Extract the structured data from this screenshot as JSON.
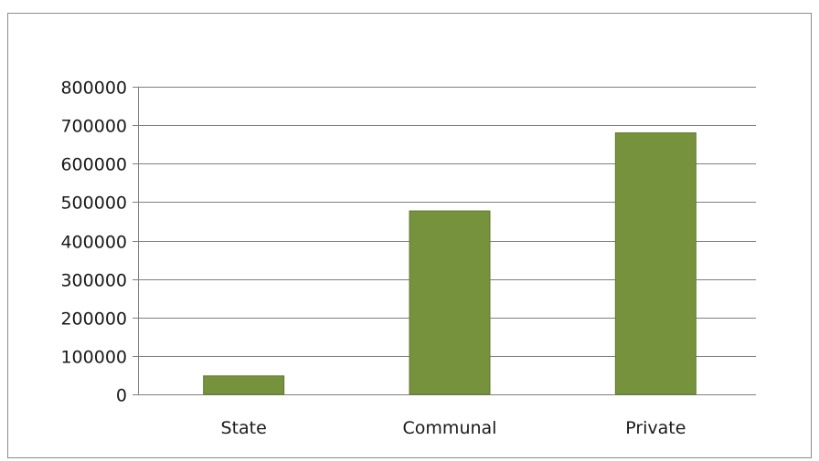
{
  "chart_data": {
    "type": "bar",
    "categories": [
      "State",
      "Communal",
      "Private"
    ],
    "values": [
      48000,
      477000,
      680000
    ],
    "ylim": [
      0,
      800000
    ],
    "yticks": [
      0,
      100000,
      200000,
      300000,
      400000,
      500000,
      600000,
      700000,
      800000
    ],
    "grid": true,
    "legend": "none",
    "title": "",
    "xlabel": "",
    "ylabel": ""
  },
  "colors": {
    "bar": "#76923c",
    "bar_edge": "#5f7a2e",
    "grid": "#7f7f7f",
    "axis": "#7f7f7f",
    "frame": "#8c8c8c"
  }
}
